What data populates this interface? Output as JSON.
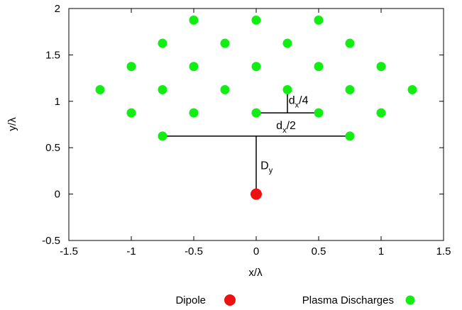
{
  "chart_data": {
    "type": "scatter",
    "xlabel": "x/λ",
    "ylabel": "y/λ",
    "xlim": [
      -1.5,
      1.5
    ],
    "ylim": [
      -0.5,
      2
    ],
    "x_ticks": [
      -1.5,
      -1,
      -0.5,
      0,
      0.5,
      1,
      1.5
    ],
    "y_ticks": [
      -0.5,
      0,
      0.5,
      1,
      1.5,
      2
    ],
    "x_tick_labels": [
      "-1.5",
      "-1",
      "-0.5",
      "0",
      "0.5",
      "1",
      "1.5"
    ],
    "y_tick_labels": [
      "-0.5",
      "0",
      "0.5",
      "1",
      "1.5",
      "2"
    ],
    "grid": false,
    "legend_position": "bottom",
    "series": [
      {
        "name": "Dipole",
        "color": "#ee1111",
        "points": [
          [
            0,
            0
          ]
        ]
      },
      {
        "name": "Plasma Discharges",
        "color": "#11ee11",
        "points": [
          [
            -0.5,
            1.875
          ],
          [
            0,
            1.875
          ],
          [
            0.5,
            1.875
          ],
          [
            -0.75,
            1.625
          ],
          [
            -0.25,
            1.625
          ],
          [
            0.25,
            1.625
          ],
          [
            0.75,
            1.625
          ],
          [
            -1,
            1.375
          ],
          [
            -0.5,
            1.375
          ],
          [
            0,
            1.375
          ],
          [
            0.5,
            1.375
          ],
          [
            1,
            1.375
          ],
          [
            -1.25,
            1.125
          ],
          [
            -0.75,
            1.125
          ],
          [
            -0.25,
            1.125
          ],
          [
            0.25,
            1.125
          ],
          [
            0.75,
            1.125
          ],
          [
            1.25,
            1.125
          ],
          [
            -1,
            0.875
          ],
          [
            -0.5,
            0.875
          ],
          [
            0,
            0.875
          ],
          [
            0.5,
            0.875
          ],
          [
            1,
            0.875
          ],
          [
            -0.75,
            0.625
          ],
          [
            0.75,
            0.625
          ]
        ]
      }
    ],
    "annotations": [
      {
        "name": "dy",
        "main": "D",
        "sub": "y",
        "tail": "",
        "lines": [
          {
            "x1": -0.75,
            "y1": 0.625,
            "x2": 0.75,
            "y2": 0.625
          },
          {
            "x1": 0,
            "y1": 0.625,
            "x2": 0,
            "y2": 0
          }
        ],
        "anchor": [
          0.035,
          0.27
        ]
      },
      {
        "name": "dx-half",
        "main": "d",
        "sub": "x",
        "tail": "/2",
        "lines": [
          {
            "x1": 0,
            "y1": 0.875,
            "x2": 0.5,
            "y2": 0.875
          }
        ],
        "anchor": [
          0.16,
          0.7
        ]
      },
      {
        "name": "dx-quarter",
        "main": "d",
        "sub": "x",
        "tail": "/4",
        "lines": [
          {
            "x1": 0.25,
            "y1": 1.125,
            "x2": 0.25,
            "y2": 0.875
          }
        ],
        "anchor": [
          0.26,
          0.97
        ]
      }
    ]
  }
}
